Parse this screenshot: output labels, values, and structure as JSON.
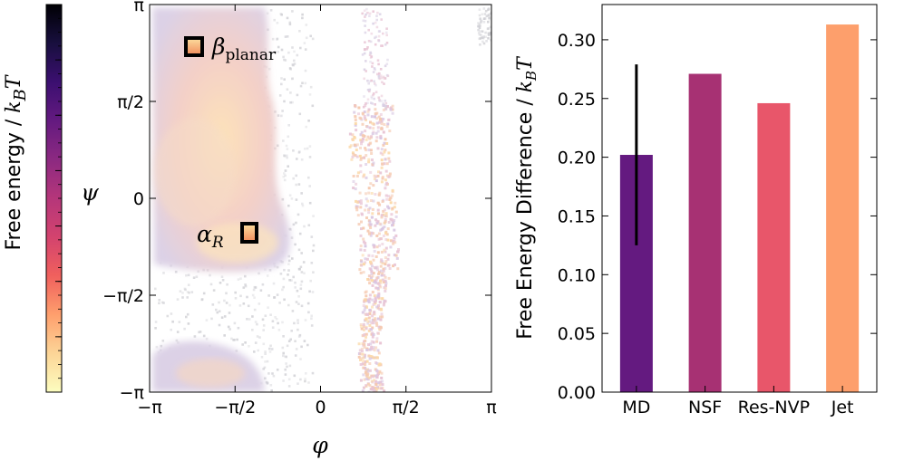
{
  "colorbar": {
    "label_prefix": "Free energy / ",
    "label_math": "k",
    "label_sub": "B",
    "label_T": "T",
    "colormap": "magma_r",
    "stops": [
      "#fcfdbf",
      "#fcd597",
      "#fe9f6d",
      "#f0605d",
      "#d3436e",
      "#b5367a",
      "#8c2981",
      "#641a80",
      "#3b0f70",
      "#180f3e",
      "#000004"
    ]
  },
  "ramachandran": {
    "xlabel": "φ",
    "ylabel": "ψ",
    "x_ticks": [
      "−π",
      "−π/2",
      "0",
      "π/2",
      "π"
    ],
    "y_ticks": [
      "π",
      "π/2",
      "0",
      "−π/2",
      "−π"
    ],
    "region_beta": {
      "symbol": "β",
      "sub": "planar"
    },
    "region_alpha": {
      "symbol": "α",
      "sub": "R"
    }
  },
  "chart_data": {
    "type": "bar",
    "title": "",
    "xlabel": "",
    "ylabel": "Free Energy Difference / k_B T",
    "ylabel_prefix": "Free Energy Difference / ",
    "ylabel_k": "k",
    "ylabel_sub": "B",
    "ylabel_T": "T",
    "categories": [
      "MD",
      "NSF",
      "Res-NVP",
      "Jet"
    ],
    "values": [
      0.202,
      0.271,
      0.246,
      0.313
    ],
    "errors": [
      0.077,
      null,
      null,
      null
    ],
    "colors": [
      "#641a80",
      "#a73173",
      "#e8566a",
      "#fd9f6c"
    ],
    "ylim": [
      0.0,
      0.33
    ],
    "yticks": [
      "0.00",
      "0.05",
      "0.10",
      "0.15",
      "0.20",
      "0.25",
      "0.30"
    ]
  }
}
